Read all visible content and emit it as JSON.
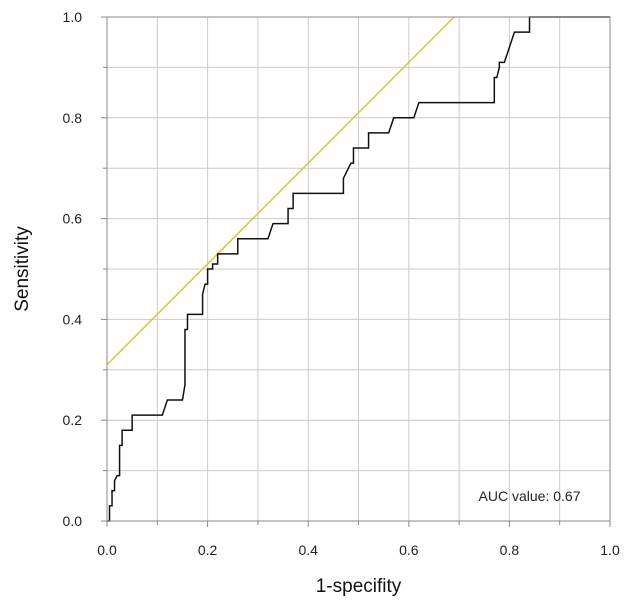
{
  "chart_data": {
    "type": "line",
    "xlabel": "1-specifity",
    "ylabel": "Sensitivity",
    "xlim": [
      0,
      1
    ],
    "ylim": [
      0,
      1
    ],
    "x_ticks": [
      "0.0",
      "0.2",
      "0.4",
      "0.6",
      "0.8",
      "1.0"
    ],
    "y_ticks": [
      "0.0",
      "0.2",
      "0.4",
      "0.6",
      "0.8",
      "1.0"
    ],
    "grid": true,
    "annotation": "AUC value: 0.67",
    "colors": {
      "roc": "#111111",
      "reference": "#e0c040",
      "grid": "#cccccc",
      "frame": "#888888"
    },
    "reference_line": {
      "x": [
        0.0,
        0.69
      ],
      "y": [
        0.31,
        1.0
      ]
    },
    "series": [
      {
        "x": [
          0.0,
          0.005,
          0.005,
          0.01,
          0.01,
          0.015,
          0.015,
          0.02,
          0.025,
          0.025,
          0.03,
          0.03,
          0.035,
          0.035,
          0.05,
          0.05,
          0.11,
          0.12,
          0.15,
          0.155,
          0.155,
          0.16,
          0.16,
          0.17,
          0.17,
          0.19,
          0.19,
          0.195,
          0.2,
          0.2,
          0.21,
          0.21,
          0.22,
          0.22,
          0.26,
          0.26,
          0.32,
          0.33,
          0.36,
          0.36,
          0.37,
          0.37,
          0.47,
          0.47,
          0.48,
          0.485,
          0.49,
          0.49,
          0.52,
          0.52,
          0.56,
          0.57,
          0.61,
          0.62,
          0.77,
          0.77,
          0.775,
          0.78,
          0.78,
          0.79,
          0.79,
          0.8,
          0.81,
          0.83,
          0.84,
          0.84,
          1.0
        ],
        "y": [
          0.0,
          0.0,
          0.03,
          0.03,
          0.06,
          0.06,
          0.08,
          0.09,
          0.09,
          0.15,
          0.15,
          0.18,
          0.18,
          0.18,
          0.18,
          0.21,
          0.21,
          0.24,
          0.24,
          0.27,
          0.38,
          0.38,
          0.41,
          0.41,
          0.41,
          0.41,
          0.45,
          0.47,
          0.47,
          0.5,
          0.5,
          0.51,
          0.51,
          0.53,
          0.53,
          0.56,
          0.56,
          0.59,
          0.59,
          0.62,
          0.62,
          0.65,
          0.65,
          0.68,
          0.7,
          0.71,
          0.71,
          0.74,
          0.74,
          0.77,
          0.77,
          0.8,
          0.8,
          0.83,
          0.83,
          0.88,
          0.88,
          0.9,
          0.91,
          0.91,
          0.91,
          0.94,
          0.97,
          0.97,
          0.97,
          1.0,
          1.0
        ]
      }
    ]
  }
}
